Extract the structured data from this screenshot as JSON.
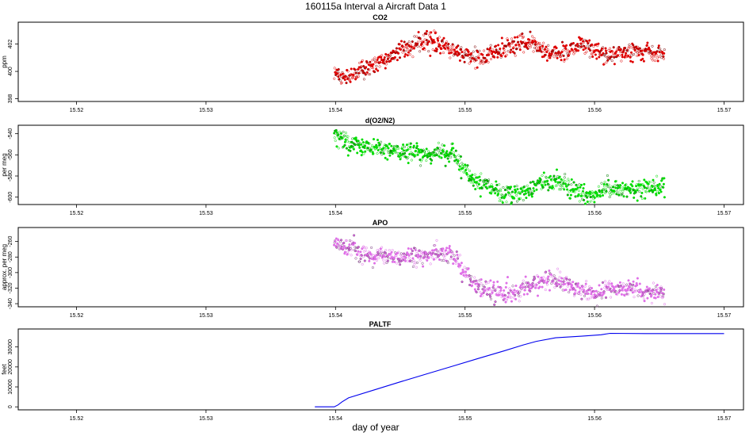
{
  "figure": {
    "title": "160115a   Interval a Aircraft Data 1",
    "xlabel": "day of year"
  },
  "chart_data": [
    {
      "type": "scatter",
      "title": "CO2",
      "ylabel": "ppm",
      "xlim": [
        15.5155,
        15.5715
      ],
      "ylim": [
        397.8,
        403.6
      ],
      "xticks": [
        15.52,
        15.53,
        15.54,
        15.55,
        15.56,
        15.57
      ],
      "xtick_labels": [
        "15.52",
        "15.53",
        "15.54",
        "15.55",
        "15.56",
        "15.57"
      ],
      "yticks": [
        398,
        400,
        402
      ],
      "ytick_labels": [
        "398",
        "400",
        "402"
      ],
      "x_range": [
        15.5399,
        15.5654
      ],
      "color": "#e00000",
      "series": [
        {
          "x": [
            15.54,
            15.541,
            15.542,
            15.543,
            15.544,
            15.545,
            15.546,
            15.547,
            15.548,
            15.549,
            15.55,
            15.551,
            15.552,
            15.553,
            15.554,
            15.555,
            15.556,
            15.557,
            15.558,
            15.559,
            15.56,
            15.561,
            15.562,
            15.563,
            15.564,
            15.565
          ],
          "y": [
            399.8,
            399.6,
            400.0,
            400.5,
            401.0,
            401.6,
            402.0,
            402.3,
            402.0,
            401.6,
            401.1,
            401.0,
            401.3,
            401.6,
            401.9,
            402.1,
            401.6,
            401.2,
            401.6,
            401.9,
            401.5,
            401.2,
            401.3,
            401.5,
            401.4,
            401.3
          ]
        }
      ]
    },
    {
      "type": "scatter",
      "title": "d(O2/N2)",
      "ylabel": "per meg",
      "xlim": [
        15.5155,
        15.5715
      ],
      "ylim": [
        -607,
        -532
      ],
      "xticks": [
        15.52,
        15.53,
        15.54,
        15.55,
        15.56,
        15.57
      ],
      "xtick_labels": [
        "15.52",
        "15.53",
        "15.54",
        "15.55",
        "15.56",
        "15.57"
      ],
      "yticks": [
        -600,
        -580,
        -560,
        -540
      ],
      "ytick_labels": [
        "-600",
        "-580",
        "-560",
        "-540"
      ],
      "x_range": [
        15.5399,
        15.5654
      ],
      "color": "#00dd00",
      "series": [
        {
          "x": [
            15.54,
            15.541,
            15.542,
            15.543,
            15.544,
            15.545,
            15.546,
            15.547,
            15.548,
            15.549,
            15.55,
            15.551,
            15.552,
            15.553,
            15.554,
            15.555,
            15.556,
            15.557,
            15.558,
            15.559,
            15.56,
            15.561,
            15.562,
            15.563,
            15.564,
            15.565
          ],
          "y": [
            -543,
            -549,
            -552,
            -553,
            -555,
            -557,
            -558,
            -560,
            -558,
            -557,
            -575,
            -588,
            -592,
            -597,
            -596,
            -592,
            -587,
            -585,
            -590,
            -596,
            -598,
            -590,
            -592,
            -593,
            -591,
            -590
          ]
        }
      ]
    },
    {
      "type": "scatter",
      "title": "APO",
      "ylabel": "approx. per meg",
      "xlim": [
        15.5155,
        15.5715
      ],
      "ylim": [
        -344,
        -242
      ],
      "xticks": [
        15.52,
        15.53,
        15.54,
        15.55,
        15.56,
        15.57
      ],
      "xtick_labels": [
        "15.52",
        "15.53",
        "15.54",
        "15.55",
        "15.56",
        "15.57"
      ],
      "yticks": [
        -340,
        -320,
        -300,
        -280,
        -260
      ],
      "ytick_labels": [
        "-340",
        "-320",
        "-300",
        "-280",
        "-260"
      ],
      "x_range": [
        15.5399,
        15.5654
      ],
      "color": "#e070e8",
      "series": [
        {
          "x": [
            15.54,
            15.541,
            15.542,
            15.543,
            15.544,
            15.545,
            15.546,
            15.547,
            15.548,
            15.549,
            15.55,
            15.551,
            15.552,
            15.553,
            15.554,
            15.555,
            15.556,
            15.557,
            15.558,
            15.559,
            15.56,
            15.561,
            15.562,
            15.563,
            15.564,
            15.565
          ],
          "y": [
            -262,
            -270,
            -275,
            -278,
            -280,
            -280,
            -279,
            -278,
            -277,
            -276,
            -300,
            -318,
            -323,
            -328,
            -325,
            -316,
            -310,
            -310,
            -316,
            -322,
            -330,
            -320,
            -320,
            -322,
            -324,
            -325
          ]
        }
      ]
    },
    {
      "type": "line",
      "title": "PALTF",
      "ylabel": "feet",
      "xlim": [
        15.5155,
        15.5715
      ],
      "ylim": [
        -1500,
        39000
      ],
      "xticks": [
        15.52,
        15.53,
        15.54,
        15.55,
        15.56,
        15.57
      ],
      "xtick_labels": [
        "15.52",
        "15.53",
        "15.54",
        "15.55",
        "15.56",
        "15.57"
      ],
      "yticks": [
        0,
        10000,
        20000,
        30000
      ],
      "ytick_labels": [
        "0",
        "10000",
        "20000",
        "30000"
      ],
      "color": "#0000ee",
      "series": [
        {
          "x": [
            15.5384,
            15.5399,
            15.5402,
            15.5405,
            15.541,
            15.543,
            15.545,
            15.547,
            15.549,
            15.551,
            15.553,
            15.5545,
            15.5555,
            15.557,
            15.559,
            15.5605,
            15.5612,
            15.564,
            15.57
          ],
          "y": [
            0,
            0,
            1000,
            2500,
            4500,
            8500,
            12500,
            16400,
            20300,
            24200,
            28000,
            31000,
            32800,
            34600,
            35400,
            36100,
            36800,
            36700,
            36700
          ]
        }
      ]
    }
  ]
}
